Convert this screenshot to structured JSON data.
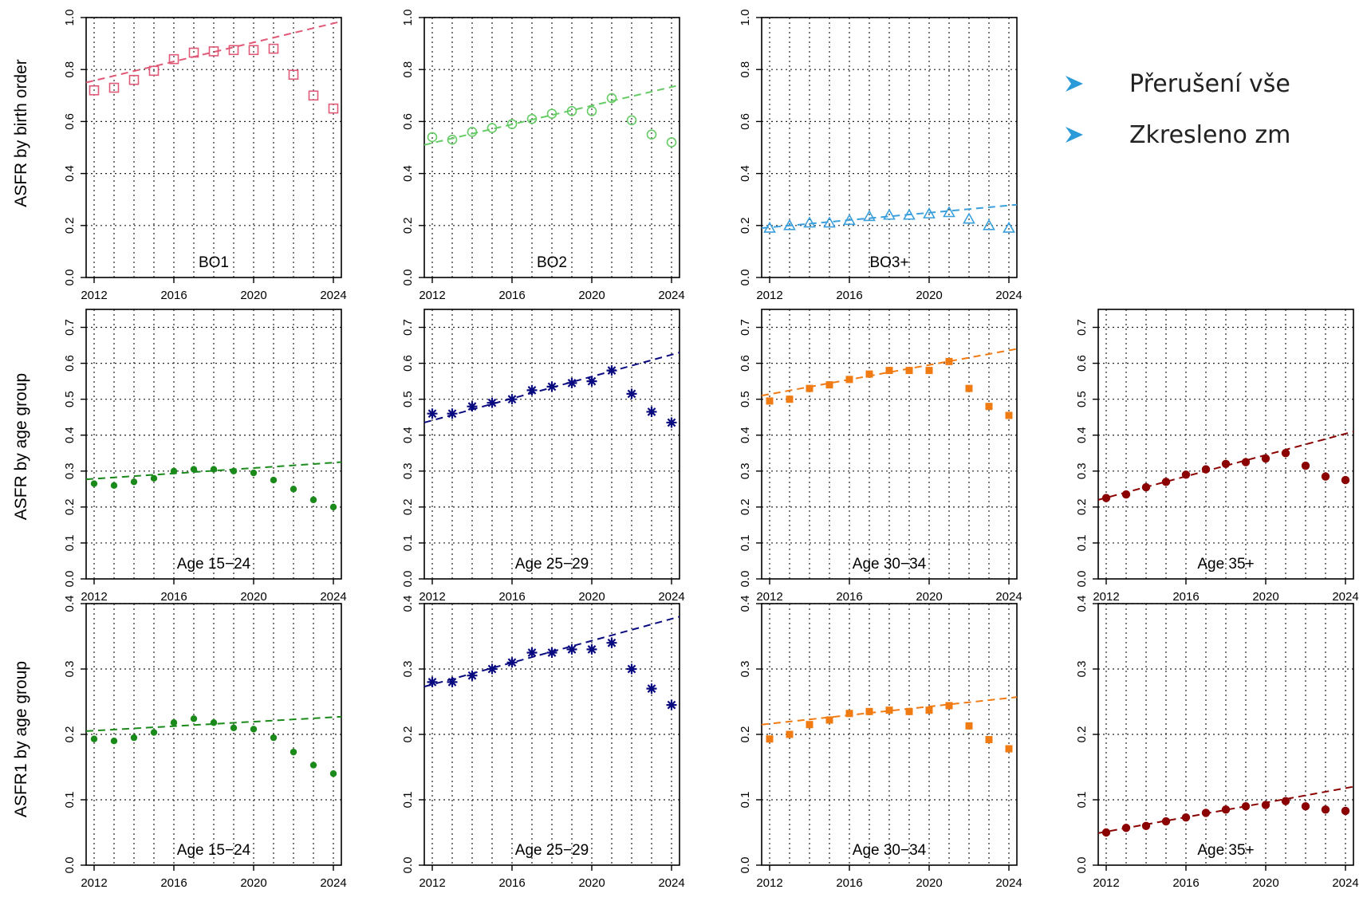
{
  "bullets": [
    {
      "icon": "arrowhead-bullet-icon",
      "text": "Přerušení vše"
    },
    {
      "icon": "arrowhead-bullet-icon",
      "text": "Zkresleno zm"
    }
  ],
  "colors": {
    "bo1": "#e05a78",
    "bo2": "#66cc66",
    "bo3": "#3a9fdd",
    "age15_24": "#1a8a1a",
    "age25_29": "#0a0a80",
    "age30_34": "#f07b12",
    "age35": "#8b0000",
    "bullet": "#2b9ad8"
  },
  "chart_data": [
    {
      "type": "scatter",
      "row": 0,
      "col": 0,
      "panel_label": "BO1",
      "ylabel": "ASFR by birth order",
      "x": [
        2012,
        2013,
        2014,
        2015,
        2016,
        2017,
        2018,
        2019,
        2020,
        2021,
        2022,
        2023,
        2024
      ],
      "values": [
        0.72,
        0.73,
        0.76,
        0.795,
        0.84,
        0.865,
        0.87,
        0.875,
        0.875,
        0.88,
        0.78,
        0.7,
        0.65
      ],
      "trend": [
        [
          2011.6,
          0.75
        ],
        [
          2024.4,
          0.985
        ]
      ],
      "xlim": [
        2011.6,
        2024.4
      ],
      "ylim": [
        0,
        1.0
      ],
      "yticks": [
        0.0,
        0.2,
        0.4,
        0.6,
        0.8,
        1.0
      ],
      "ytick_labels": [
        "0.0",
        "0.2",
        "0.4",
        "0.6",
        "0.8",
        "1.0"
      ],
      "xticks": [
        2012,
        2016,
        2020,
        2024
      ],
      "xtick_labels": [
        "2012",
        "2016",
        "2020",
        "2024"
      ],
      "marker": "open-square",
      "color_key": "bo1",
      "grid": true
    },
    {
      "type": "scatter",
      "row": 0,
      "col": 1,
      "panel_label": "BO2",
      "ylabel": "",
      "x": [
        2012,
        2013,
        2014,
        2015,
        2016,
        2017,
        2018,
        2019,
        2020,
        2021,
        2022,
        2023,
        2024
      ],
      "values": [
        0.54,
        0.53,
        0.56,
        0.575,
        0.59,
        0.61,
        0.63,
        0.64,
        0.64,
        0.69,
        0.605,
        0.55,
        0.52
      ],
      "trend": [
        [
          2011.6,
          0.51
        ],
        [
          2024.4,
          0.74
        ]
      ],
      "xlim": [
        2011.6,
        2024.4
      ],
      "ylim": [
        0,
        1.0
      ],
      "yticks": [
        0.0,
        0.2,
        0.4,
        0.6,
        0.8,
        1.0
      ],
      "ytick_labels": [
        "0.0",
        "0.2",
        "0.4",
        "0.6",
        "0.8",
        "1.0"
      ],
      "xticks": [
        2012,
        2016,
        2020,
        2024
      ],
      "xtick_labels": [
        "2012",
        "2016",
        "2020",
        "2024"
      ],
      "marker": "open-circle",
      "color_key": "bo2",
      "grid": true
    },
    {
      "type": "scatter",
      "row": 0,
      "col": 2,
      "panel_label": "BO3+",
      "ylabel": "",
      "x": [
        2012,
        2013,
        2014,
        2015,
        2016,
        2017,
        2018,
        2019,
        2020,
        2021,
        2022,
        2023,
        2024
      ],
      "values": [
        0.19,
        0.2,
        0.21,
        0.21,
        0.22,
        0.235,
        0.24,
        0.24,
        0.245,
        0.25,
        0.225,
        0.2,
        0.19
      ],
      "trend": [
        [
          2011.6,
          0.19
        ],
        [
          2024.4,
          0.28
        ]
      ],
      "xlim": [
        2011.6,
        2024.4
      ],
      "ylim": [
        0,
        1.0
      ],
      "yticks": [
        0.0,
        0.2,
        0.4,
        0.6,
        0.8,
        1.0
      ],
      "ytick_labels": [
        "0.0",
        "0.2",
        "0.4",
        "0.6",
        "0.8",
        "1.0"
      ],
      "xticks": [
        2012,
        2016,
        2020,
        2024
      ],
      "xtick_labels": [
        "2012",
        "2016",
        "2020",
        "2024"
      ],
      "marker": "open-triangle",
      "color_key": "bo3",
      "grid": true
    },
    {
      "type": "scatter",
      "row": 1,
      "col": 0,
      "panel_label": "Age 15−24",
      "ylabel": "ASFR by age group",
      "x": [
        2012,
        2013,
        2014,
        2015,
        2016,
        2017,
        2018,
        2019,
        2020,
        2021,
        2022,
        2023,
        2024
      ],
      "values": [
        0.265,
        0.26,
        0.27,
        0.28,
        0.3,
        0.305,
        0.305,
        0.3,
        0.295,
        0.275,
        0.25,
        0.22,
        0.2
      ],
      "trend": [
        [
          2011.6,
          0.277
        ],
        [
          2024.4,
          0.325
        ]
      ],
      "xlim": [
        2011.6,
        2024.4
      ],
      "ylim": [
        0,
        0.75
      ],
      "yticks": [
        0.0,
        0.1,
        0.2,
        0.3,
        0.4,
        0.5,
        0.6,
        0.7
      ],
      "ytick_labels": [
        "0.0",
        "0.1",
        "0.2",
        "0.3",
        "0.4",
        "0.5",
        "0.6",
        "0.7"
      ],
      "xticks": [
        2012,
        2016,
        2020,
        2024
      ],
      "xtick_labels": [
        "2012",
        "2016",
        "2020",
        "2024"
      ],
      "marker": "filled-circle",
      "color_key": "age15_24",
      "grid": true
    },
    {
      "type": "scatter",
      "row": 1,
      "col": 1,
      "panel_label": "Age 25−29",
      "ylabel": "",
      "x": [
        2012,
        2013,
        2014,
        2015,
        2016,
        2017,
        2018,
        2019,
        2020,
        2021,
        2022,
        2023,
        2024
      ],
      "values": [
        0.46,
        0.46,
        0.48,
        0.49,
        0.5,
        0.525,
        0.535,
        0.545,
        0.55,
        0.58,
        0.515,
        0.465,
        0.435
      ],
      "trend": [
        [
          2011.6,
          0.435
        ],
        [
          2024.4,
          0.63
        ]
      ],
      "xlim": [
        2011.6,
        2024.4
      ],
      "ylim": [
        0,
        0.75
      ],
      "yticks": [
        0.0,
        0.1,
        0.2,
        0.3,
        0.4,
        0.5,
        0.6,
        0.7
      ],
      "ytick_labels": [
        "0.0",
        "0.1",
        "0.2",
        "0.3",
        "0.4",
        "0.5",
        "0.6",
        "0.7"
      ],
      "xticks": [
        2012,
        2016,
        2020,
        2024
      ],
      "xtick_labels": [
        "2012",
        "2016",
        "2020",
        "2024"
      ],
      "marker": "asterisk",
      "color_key": "age25_29",
      "grid": true
    },
    {
      "type": "scatter",
      "row": 1,
      "col": 2,
      "panel_label": "Age 30−34",
      "ylabel": "",
      "x": [
        2012,
        2013,
        2014,
        2015,
        2016,
        2017,
        2018,
        2019,
        2020,
        2021,
        2022,
        2023,
        2024
      ],
      "values": [
        0.495,
        0.5,
        0.53,
        0.54,
        0.555,
        0.57,
        0.58,
        0.58,
        0.58,
        0.605,
        0.53,
        0.48,
        0.455
      ],
      "trend": [
        [
          2011.6,
          0.51
        ],
        [
          2024.4,
          0.64
        ]
      ],
      "xlim": [
        2011.6,
        2024.4
      ],
      "ylim": [
        0,
        0.75
      ],
      "yticks": [
        0.0,
        0.1,
        0.2,
        0.3,
        0.4,
        0.5,
        0.6,
        0.7
      ],
      "ytick_labels": [
        "0.0",
        "0.1",
        "0.2",
        "0.3",
        "0.4",
        "0.5",
        "0.6",
        "0.7"
      ],
      "xticks": [
        2012,
        2016,
        2020,
        2024
      ],
      "xtick_labels": [
        "2012",
        "2016",
        "2020",
        "2024"
      ],
      "marker": "filled-square",
      "color_key": "age30_34",
      "grid": true
    },
    {
      "type": "scatter",
      "row": 1,
      "col": 3,
      "panel_label": "Age 35+",
      "ylabel": "",
      "x": [
        2012,
        2013,
        2014,
        2015,
        2016,
        2017,
        2018,
        2019,
        2020,
        2021,
        2022,
        2023,
        2024
      ],
      "values": [
        0.225,
        0.235,
        0.255,
        0.27,
        0.29,
        0.305,
        0.32,
        0.325,
        0.335,
        0.35,
        0.315,
        0.285,
        0.275
      ],
      "trend": [
        [
          2011.6,
          0.22
        ],
        [
          2024.4,
          0.41
        ]
      ],
      "xlim": [
        2011.6,
        2024.4
      ],
      "ylim": [
        0,
        0.75
      ],
      "yticks": [
        0.0,
        0.1,
        0.2,
        0.3,
        0.4,
        0.5,
        0.6,
        0.7
      ],
      "ytick_labels": [
        "0.0",
        "0.1",
        "0.2",
        "0.3",
        "0.4",
        "0.5",
        "0.6",
        "0.7"
      ],
      "xticks": [
        2012,
        2016,
        2020,
        2024
      ],
      "xtick_labels": [
        "2012",
        "2016",
        "2020",
        "2024"
      ],
      "marker": "filled-circle-large",
      "color_key": "age35",
      "grid": true
    },
    {
      "type": "scatter",
      "row": 2,
      "col": 0,
      "panel_label": "Age 15−24",
      "ylabel": "ASFR1 by age group",
      "x": [
        2012,
        2013,
        2014,
        2015,
        2016,
        2017,
        2018,
        2019,
        2020,
        2021,
        2022,
        2023,
        2024
      ],
      "values": [
        0.193,
        0.19,
        0.195,
        0.203,
        0.218,
        0.224,
        0.218,
        0.21,
        0.208,
        0.195,
        0.173,
        0.153,
        0.14
      ],
      "trend": [
        [
          2011.6,
          0.205
        ],
        [
          2024.4,
          0.227
        ]
      ],
      "xlim": [
        2011.6,
        2024.4
      ],
      "ylim": [
        0,
        0.4
      ],
      "yticks": [
        0.0,
        0.1,
        0.2,
        0.3,
        0.4
      ],
      "ytick_labels": [
        "0.0",
        "0.1",
        "0.2",
        "0.3",
        "0.4"
      ],
      "xticks": [
        2012,
        2016,
        2020,
        2024
      ],
      "xtick_labels": [
        "2012",
        "2016",
        "2020",
        "2024"
      ],
      "marker": "filled-circle",
      "color_key": "age15_24",
      "grid": true
    },
    {
      "type": "scatter",
      "row": 2,
      "col": 1,
      "panel_label": "Age 25−29",
      "ylabel": "",
      "x": [
        2012,
        2013,
        2014,
        2015,
        2016,
        2017,
        2018,
        2019,
        2020,
        2021,
        2022,
        2023,
        2024
      ],
      "values": [
        0.28,
        0.28,
        0.29,
        0.3,
        0.31,
        0.325,
        0.325,
        0.33,
        0.33,
        0.34,
        0.3,
        0.27,
        0.245
      ],
      "trend": [
        [
          2011.6,
          0.273
        ],
        [
          2024.4,
          0.38
        ]
      ],
      "xlim": [
        2011.6,
        2024.4
      ],
      "ylim": [
        0,
        0.4
      ],
      "yticks": [
        0.0,
        0.1,
        0.2,
        0.3,
        0.4
      ],
      "ytick_labels": [
        "0.0",
        "0.1",
        "0.2",
        "0.3",
        "0.4"
      ],
      "xticks": [
        2012,
        2016,
        2020,
        2024
      ],
      "xtick_labels": [
        "2012",
        "2016",
        "2020",
        "2024"
      ],
      "marker": "asterisk",
      "color_key": "age25_29",
      "grid": true
    },
    {
      "type": "scatter",
      "row": 2,
      "col": 2,
      "panel_label": "Age 30−34",
      "ylabel": "",
      "x": [
        2012,
        2013,
        2014,
        2015,
        2016,
        2017,
        2018,
        2019,
        2020,
        2021,
        2022,
        2023,
        2024
      ],
      "values": [
        0.193,
        0.2,
        0.215,
        0.222,
        0.232,
        0.235,
        0.237,
        0.235,
        0.237,
        0.244,
        0.213,
        0.192,
        0.178
      ],
      "trend": [
        [
          2011.6,
          0.215
        ],
        [
          2024.4,
          0.257
        ]
      ],
      "xlim": [
        2011.6,
        2024.4
      ],
      "ylim": [
        0,
        0.4
      ],
      "yticks": [
        0.0,
        0.1,
        0.2,
        0.3,
        0.4
      ],
      "ytick_labels": [
        "0.0",
        "0.1",
        "0.2",
        "0.3",
        "0.4"
      ],
      "xticks": [
        2012,
        2016,
        2020,
        2024
      ],
      "xtick_labels": [
        "2012",
        "2016",
        "2020",
        "2024"
      ],
      "marker": "filled-square",
      "color_key": "age30_34",
      "grid": true
    },
    {
      "type": "scatter",
      "row": 2,
      "col": 3,
      "panel_label": "Age 35+",
      "ylabel": "",
      "x": [
        2012,
        2013,
        2014,
        2015,
        2016,
        2017,
        2018,
        2019,
        2020,
        2021,
        2022,
        2023,
        2024
      ],
      "values": [
        0.05,
        0.057,
        0.06,
        0.067,
        0.073,
        0.08,
        0.085,
        0.09,
        0.092,
        0.098,
        0.09,
        0.085,
        0.083
      ],
      "trend": [
        [
          2011.6,
          0.049
        ],
        [
          2024.4,
          0.12
        ]
      ],
      "xlim": [
        2011.6,
        2024.4
      ],
      "ylim": [
        0,
        0.4
      ],
      "yticks": [
        0.0,
        0.1,
        0.2,
        0.3,
        0.4
      ],
      "ytick_labels": [
        "0.0",
        "0.1",
        "0.2",
        "0.3",
        "0.4"
      ],
      "xticks": [
        2012,
        2016,
        2020,
        2024
      ],
      "xtick_labels": [
        "2012",
        "2016",
        "2020",
        "2024"
      ],
      "marker": "filled-circle-large",
      "color_key": "age35",
      "grid": true
    }
  ]
}
